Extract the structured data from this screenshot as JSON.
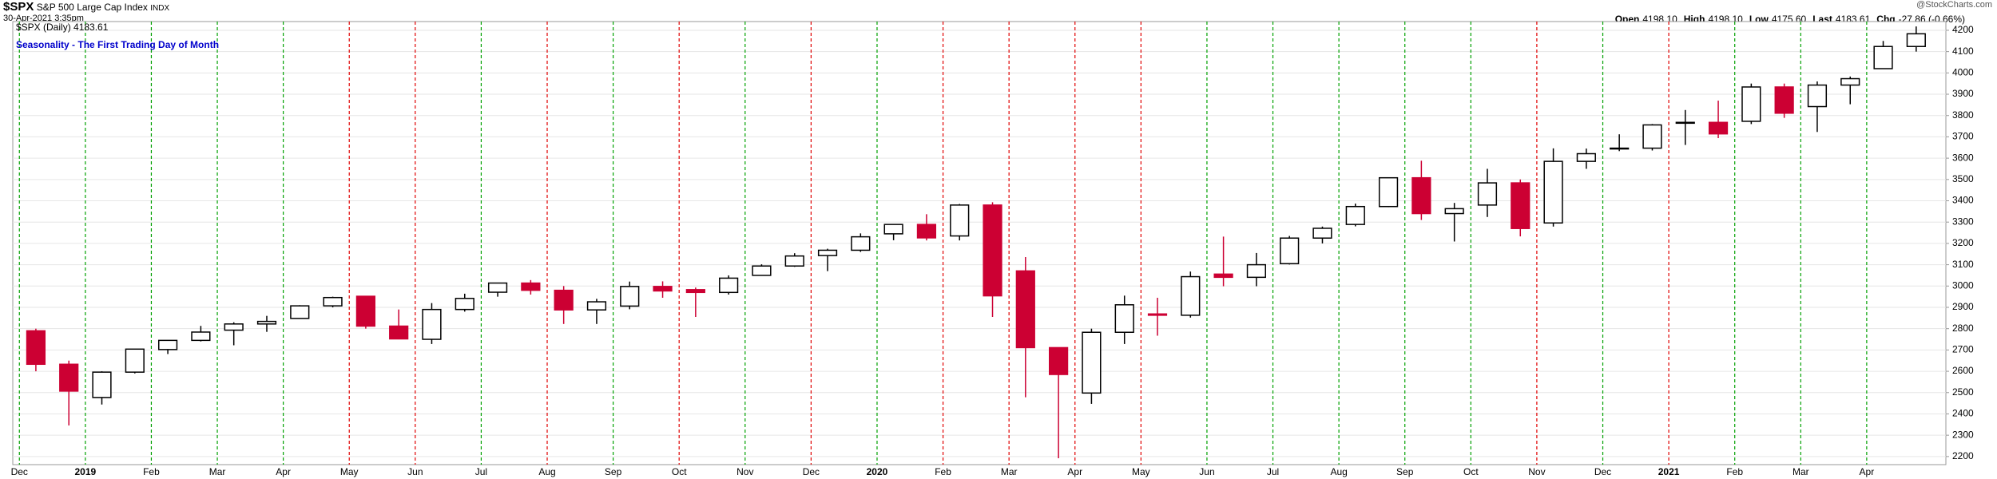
{
  "header": {
    "symbol": "$SPX",
    "name": "S&P 500 Large Cap Index",
    "exchange": "INDX",
    "date": "30-Apr-2021 3:35pm",
    "credit": "@StockCharts.com",
    "quote": [
      {
        "label": "Open",
        "value": "4198.10"
      },
      {
        "label": "High",
        "value": "4198.10"
      },
      {
        "label": "Low",
        "value": "4175.60"
      },
      {
        "label": "Last",
        "value": "4183.61"
      },
      {
        "label": "Chg",
        "value": "-27.86 (-0.66%)"
      }
    ]
  },
  "chart_data": {
    "type": "candlestick",
    "title": "Seasonality - The First Trading Day of Month",
    "title_color": "#0000cc",
    "legend": "$SPX (Daily) 4183.61",
    "up_color": "#000000",
    "down_color": "#cc0033",
    "open": [
      2790,
      2633,
      2477,
      2596,
      2702,
      2745,
      2793,
      2822,
      2848,
      2907,
      2952,
      2812,
      2750,
      2890,
      2971,
      3014,
      2980,
      2888,
      2906,
      2998,
      2983,
      2970,
      3050,
      3094,
      3143,
      3168,
      3245,
      3289,
      3235,
      3380,
      3071,
      2711,
      2498,
      2783,
      2869,
      2863,
      3056,
      3041,
      3105,
      3225,
      3289,
      3373,
      3508,
      3340,
      3380,
      3484,
      3296,
      3585,
      3645,
      3647,
      3764,
      3768,
      3773,
      3934,
      3842,
      3943,
      4020,
      4124
    ],
    "high": [
      2800,
      2650,
      2600,
      2705,
      2745,
      2813,
      2830,
      2860,
      2910,
      2950,
      2954,
      2890,
      2920,
      2964,
      3014,
      3028,
      3000,
      2940,
      3021,
      3022,
      2993,
      3050,
      3102,
      3154,
      3175,
      3247,
      3290,
      3337,
      3385,
      3393,
      3136,
      2711,
      2800,
      2955,
      2945,
      3068,
      3232,
      3155,
      3235,
      3279,
      3387,
      3509,
      3588,
      3390,
      3550,
      3500,
      3646,
      3645,
      3712,
      3760,
      3826,
      3870,
      3950,
      3950,
      3960,
      3983,
      4150,
      4218
    ],
    "low": [
      2600,
      2346,
      2444,
      2590,
      2681,
      2740,
      2722,
      2785,
      2848,
      2900,
      2800,
      2750,
      2728,
      2880,
      2950,
      2960,
      2822,
      2822,
      2891,
      2945,
      2855,
      2960,
      3050,
      3090,
      3070,
      3160,
      3215,
      3214,
      3214,
      2855,
      2478,
      2192,
      2447,
      2728,
      2767,
      2852,
      2999,
      2999,
      3101,
      3200,
      3280,
      3370,
      3310,
      3209,
      3324,
      3233,
      3279,
      3550,
      3633,
      3636,
      3662,
      3694,
      3760,
      3789,
      3723,
      3853,
      4020,
      4100
    ],
    "close": [
      2633,
      2507,
      2596,
      2704,
      2745,
      2784,
      2822,
      2834,
      2907,
      2946,
      2812,
      2752,
      2890,
      2942,
      3014,
      2980,
      2888,
      2926,
      2998,
      2977,
      2970,
      3037,
      3094,
      3141,
      3168,
      3231,
      3289,
      3226,
      3380,
      2954,
      2711,
      2585,
      2783,
      2912,
      2863,
      3044,
      3041,
      3100,
      3225,
      3271,
      3373,
      3508,
      3340,
      3363,
      3484,
      3270,
      3585,
      3621,
      3647,
      3756,
      3768,
      3714,
      3934,
      3811,
      3943,
      3973,
      4124,
      4183.61
    ],
    "xlim": [
      -0.2,
      58.4
    ],
    "xticks": [
      {
        "value": 0,
        "label": "Dec"
      },
      {
        "value": 2,
        "label": "2019"
      },
      {
        "value": 4,
        "label": "Feb"
      },
      {
        "value": 6,
        "label": "Mar"
      },
      {
        "value": 8,
        "label": "Apr"
      },
      {
        "value": 10,
        "label": "May"
      },
      {
        "value": 12,
        "label": "Jun"
      },
      {
        "value": 14,
        "label": "Jul"
      },
      {
        "value": 16,
        "label": "Aug"
      },
      {
        "value": 18,
        "label": "Sep"
      },
      {
        "value": 20,
        "label": "Oct"
      },
      {
        "value": 22,
        "label": "Nov"
      },
      {
        "value": 24,
        "label": "Dec"
      },
      {
        "value": 26,
        "label": "2020"
      },
      {
        "value": 28,
        "label": "Feb"
      },
      {
        "value": 30,
        "label": "Mar"
      },
      {
        "value": 32,
        "label": "Apr"
      },
      {
        "value": 34,
        "label": "May"
      },
      {
        "value": 36,
        "label": "Jun"
      },
      {
        "value": 38,
        "label": "Jul"
      },
      {
        "value": 40,
        "label": "Aug"
      },
      {
        "value": 42,
        "label": "Sep"
      },
      {
        "value": 44,
        "label": "Oct"
      },
      {
        "value": 46,
        "label": "Nov"
      },
      {
        "value": 48,
        "label": "Dec"
      },
      {
        "value": 50,
        "label": "2021"
      },
      {
        "value": 52,
        "label": "Feb"
      },
      {
        "value": 54,
        "label": "Mar"
      },
      {
        "value": 56,
        "label": "Apr"
      }
    ],
    "month_line_colors": [
      "#00a000",
      "#00a000",
      "#00a000",
      "#00a000",
      "#00a000",
      "#e00000",
      "#e00000",
      "#00a000",
      "#e00000",
      "#00a000",
      "#e00000",
      "#00a000",
      "#e00000",
      "#00a000",
      "#e00000",
      "#e00000",
      "#e00000",
      "#e00000",
      "#00a000",
      "#00a000",
      "#00a000",
      "#00a000",
      "#00a000",
      "#e00000",
      "#00a000",
      "#e00000",
      "#00a000",
      "#00a000",
      "#00a000"
    ],
    "ylim": [
      2162,
      4241
    ],
    "yticks": [
      2200,
      2300,
      2400,
      2500,
      2600,
      2700,
      2800,
      2900,
      3000,
      3100,
      3200,
      3300,
      3400,
      3500,
      3600,
      3700,
      3800,
      3900,
      4000,
      4100,
      4200
    ],
    "grid": true
  }
}
